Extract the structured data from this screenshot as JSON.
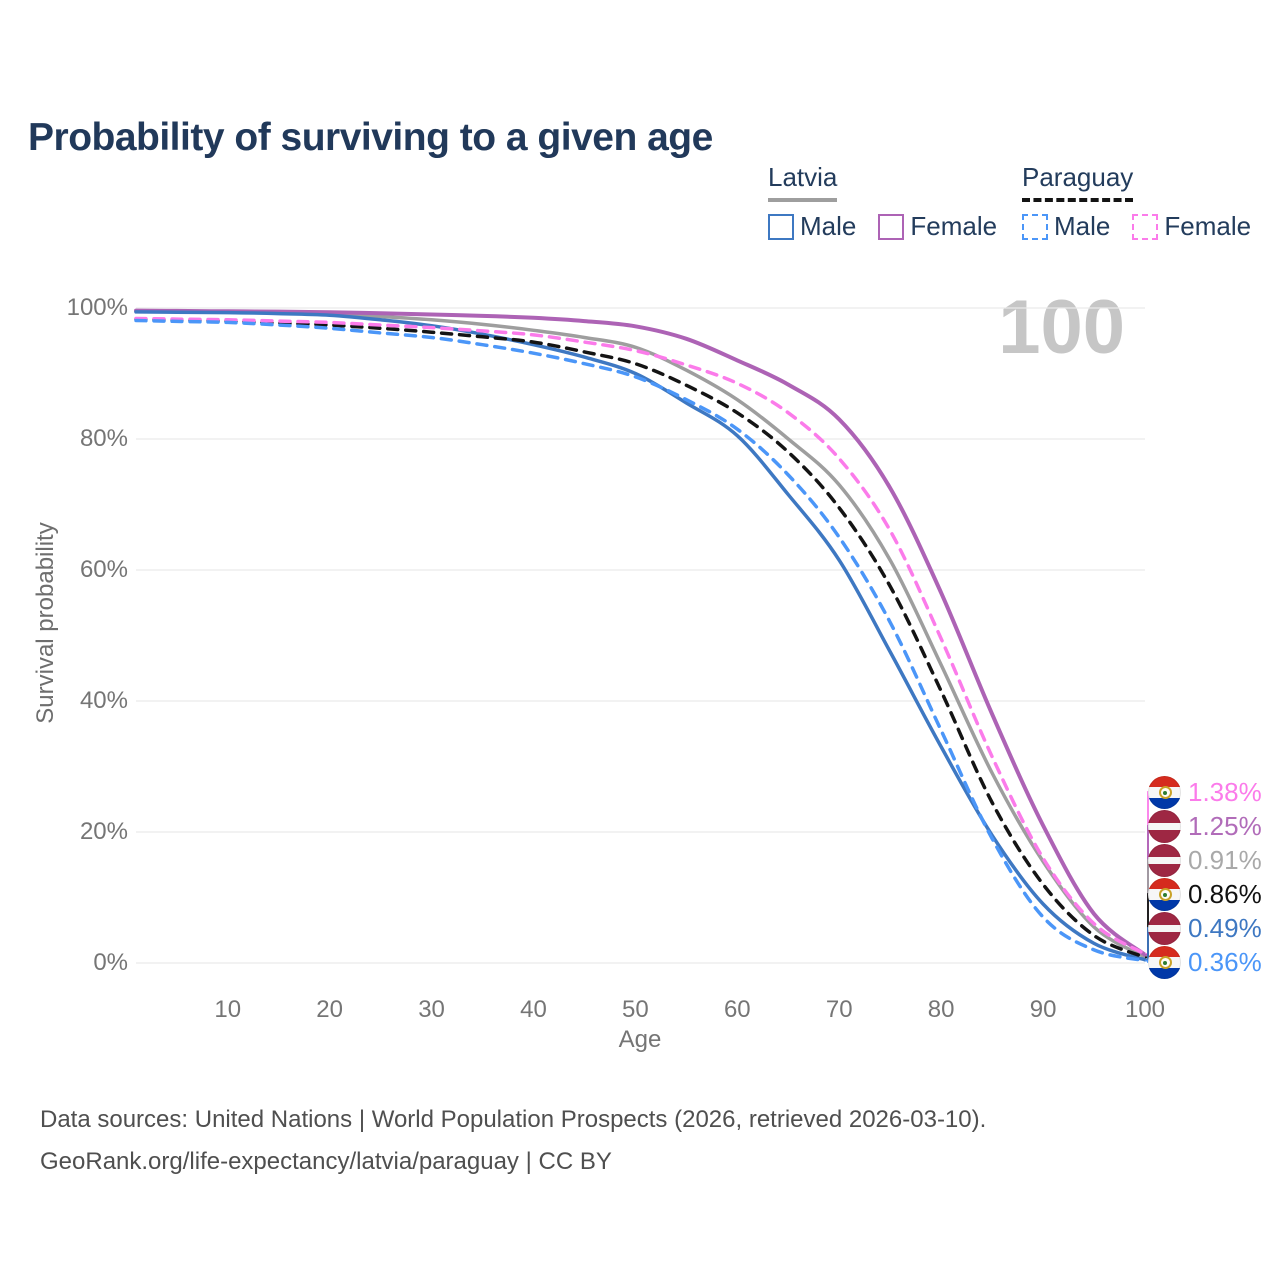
{
  "header": {
    "title": "Probability of surviving to a given age"
  },
  "legend": {
    "groups": [
      {
        "country": "Latvia",
        "line_style": "solid",
        "underline_color": "#9e9e9e",
        "items": [
          {
            "label": "Male",
            "color": "#3e78c2"
          },
          {
            "label": "Female",
            "color": "#ad63b5"
          }
        ]
      },
      {
        "country": "Paraguay",
        "line_style": "dashed",
        "underline_color": "#141414",
        "items": [
          {
            "label": "Male",
            "color": "#4b96f8"
          },
          {
            "label": "Female",
            "color": "#fb7bea"
          }
        ]
      }
    ]
  },
  "watermark": "100",
  "footer": {
    "line1": "Data sources: United Nations | World Population Prospects (2026, retrieved 2026-03-10).",
    "line2": "GeoRank.org/life-expectancy/latvia/paraguay | CC BY"
  },
  "colors": {
    "title_text": "#21395a",
    "axis_text": "#757575",
    "grid": "#e9e9e9",
    "watermark": "#c6c6c6",
    "source_text": "#4f4f4f"
  },
  "chart_data": {
    "type": "line",
    "title": "Probability of surviving to a given age",
    "xlabel": "Age",
    "ylabel": "Survival probability",
    "xlim": [
      1,
      100
    ],
    "ylim": [
      0,
      100
    ],
    "grid": "horizontal",
    "legend_position": "top-right",
    "x_ticks": [
      10,
      20,
      30,
      40,
      50,
      60,
      70,
      80,
      90,
      100
    ],
    "y_ticks": [
      {
        "value": 100,
        "label": "100%"
      },
      {
        "value": 80,
        "label": "80%"
      },
      {
        "value": 60,
        "label": "60%"
      },
      {
        "value": 40,
        "label": "40%"
      },
      {
        "value": 20,
        "label": "20%"
      },
      {
        "value": 0,
        "label": "0%"
      }
    ],
    "series": [
      {
        "id": "latvia-all",
        "name": "Latvia",
        "color": "#9e9e9e",
        "dash": "solid",
        "width": 3.5,
        "flag": "lv",
        "end_label": "0.91%",
        "end_label_color": "#a9a9a9",
        "points": [
          [
            1,
            99.5
          ],
          [
            5,
            99.45
          ],
          [
            10,
            99.4
          ],
          [
            15,
            99.3
          ],
          [
            20,
            99.1
          ],
          [
            25,
            98.7
          ],
          [
            30,
            98.2
          ],
          [
            35,
            97.5
          ],
          [
            40,
            96.6
          ],
          [
            45,
            95.5
          ],
          [
            50,
            94.0
          ],
          [
            55,
            90.5
          ],
          [
            60,
            86.0
          ],
          [
            65,
            80.0
          ],
          [
            70,
            73.0
          ],
          [
            75,
            61.5
          ],
          [
            80,
            45.5
          ],
          [
            85,
            29.0
          ],
          [
            90,
            15.5
          ],
          [
            95,
            5.5
          ],
          [
            100,
            0.91
          ]
        ]
      },
      {
        "id": "latvia-female",
        "name": "Latvia Female",
        "color": "#ad63b5",
        "dash": "solid",
        "width": 4,
        "flag": "lv",
        "end_label": "1.25%",
        "end_label_color": "#b16cb9",
        "points": [
          [
            1,
            99.6
          ],
          [
            5,
            99.55
          ],
          [
            10,
            99.5
          ],
          [
            15,
            99.45
          ],
          [
            20,
            99.35
          ],
          [
            25,
            99.2
          ],
          [
            30,
            99.0
          ],
          [
            35,
            98.8
          ],
          [
            40,
            98.5
          ],
          [
            45,
            98.0
          ],
          [
            50,
            97.2
          ],
          [
            55,
            95.3
          ],
          [
            60,
            92.0
          ],
          [
            65,
            88.3
          ],
          [
            70,
            83.0
          ],
          [
            75,
            72.5
          ],
          [
            80,
            56.5
          ],
          [
            85,
            38.0
          ],
          [
            90,
            21.0
          ],
          [
            95,
            7.5
          ],
          [
            100,
            1.25
          ]
        ]
      },
      {
        "id": "latvia-male",
        "name": "Latvia Male",
        "color": "#3e78c2",
        "dash": "solid",
        "width": 3.5,
        "flag": "lv",
        "end_label": "0.49%",
        "end_label_color": "#3e78c2",
        "points": [
          [
            1,
            99.4
          ],
          [
            5,
            99.35
          ],
          [
            10,
            99.3
          ],
          [
            15,
            99.15
          ],
          [
            20,
            98.9
          ],
          [
            25,
            98.2
          ],
          [
            30,
            97.3
          ],
          [
            35,
            96.0
          ],
          [
            40,
            94.4
          ],
          [
            45,
            92.5
          ],
          [
            50,
            90.0
          ],
          [
            55,
            85.5
          ],
          [
            60,
            80.5
          ],
          [
            65,
            71.5
          ],
          [
            70,
            61.5
          ],
          [
            75,
            47.5
          ],
          [
            80,
            33.0
          ],
          [
            85,
            19.5
          ],
          [
            90,
            9.0
          ],
          [
            95,
            3.0
          ],
          [
            100,
            0.49
          ]
        ]
      },
      {
        "id": "paraguay-all",
        "name": "Paraguay",
        "color": "#141414",
        "dash": "dashed",
        "width": 3.5,
        "flag": "py",
        "end_label": "0.86%",
        "end_label_color": "#111111",
        "points": [
          [
            1,
            98.3
          ],
          [
            5,
            98.15
          ],
          [
            10,
            98.0
          ],
          [
            15,
            97.7
          ],
          [
            20,
            97.4
          ],
          [
            25,
            96.9
          ],
          [
            30,
            96.3
          ],
          [
            35,
            95.6
          ],
          [
            40,
            94.8
          ],
          [
            45,
            93.3
          ],
          [
            50,
            91.5
          ],
          [
            55,
            88.2
          ],
          [
            60,
            84.0
          ],
          [
            65,
            78.0
          ],
          [
            70,
            69.5
          ],
          [
            75,
            57.5
          ],
          [
            80,
            41.5
          ],
          [
            85,
            24.5
          ],
          [
            90,
            12.0
          ],
          [
            95,
            4.2
          ],
          [
            100,
            0.86
          ]
        ]
      },
      {
        "id": "paraguay-female",
        "name": "Paraguay Female",
        "color": "#fb7bea",
        "dash": "dashed",
        "width": 3.5,
        "flag": "py",
        "end_label": "1.38%",
        "end_label_color": "#fb7bea",
        "points": [
          [
            1,
            98.4
          ],
          [
            5,
            98.3
          ],
          [
            10,
            98.2
          ],
          [
            15,
            98.0
          ],
          [
            20,
            97.8
          ],
          [
            25,
            97.4
          ],
          [
            30,
            97.0
          ],
          [
            35,
            96.5
          ],
          [
            40,
            95.9
          ],
          [
            45,
            94.8
          ],
          [
            50,
            93.5
          ],
          [
            55,
            91.3
          ],
          [
            60,
            88.5
          ],
          [
            65,
            84.0
          ],
          [
            70,
            77.0
          ],
          [
            75,
            66.0
          ],
          [
            80,
            49.5
          ],
          [
            85,
            31.5
          ],
          [
            90,
            16.0
          ],
          [
            95,
            6.0
          ],
          [
            100,
            1.38
          ]
        ]
      },
      {
        "id": "paraguay-male",
        "name": "Paraguay Male",
        "color": "#4b96f8",
        "dash": "dashed",
        "width": 3.5,
        "flag": "py",
        "end_label": "0.36%",
        "end_label_color": "#4b96f8",
        "points": [
          [
            1,
            98.1
          ],
          [
            5,
            97.95
          ],
          [
            10,
            97.8
          ],
          [
            15,
            97.4
          ],
          [
            20,
            96.9
          ],
          [
            25,
            96.2
          ],
          [
            30,
            95.5
          ],
          [
            35,
            94.4
          ],
          [
            40,
            93.1
          ],
          [
            45,
            91.5
          ],
          [
            50,
            89.5
          ],
          [
            55,
            86.0
          ],
          [
            60,
            81.5
          ],
          [
            65,
            74.5
          ],
          [
            70,
            65.0
          ],
          [
            75,
            52.0
          ],
          [
            80,
            35.5
          ],
          [
            85,
            19.0
          ],
          [
            90,
            7.0
          ],
          [
            95,
            2.0
          ],
          [
            100,
            0.36
          ]
        ]
      }
    ]
  }
}
